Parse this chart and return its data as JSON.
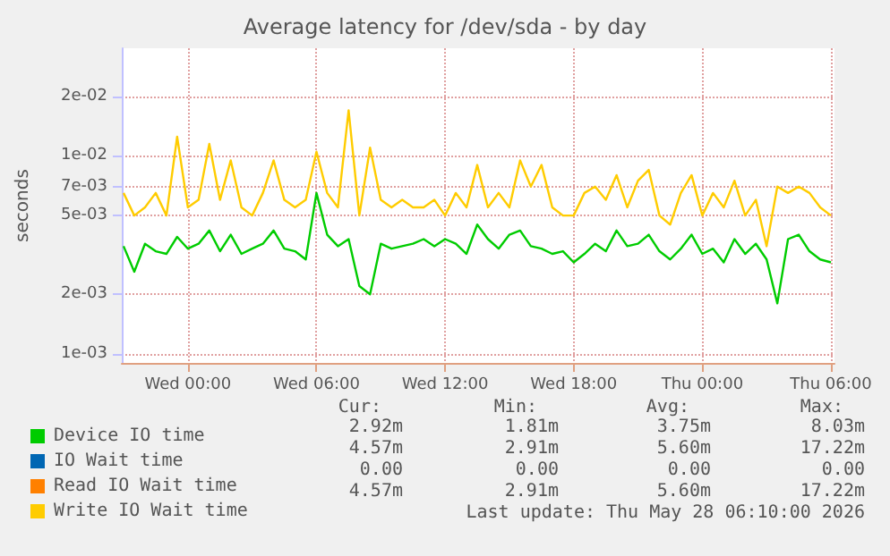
{
  "chart_data": {
    "type": "line",
    "title": "Average latency for /dev/sda - by day",
    "ylabel": "seconds",
    "x": [
      "2026-05-26T21:00",
      "2026-05-26T21:30",
      "2026-05-26T22:00",
      "2026-05-26T22:30",
      "2026-05-26T23:00",
      "2026-05-26T23:30",
      "2026-05-27T00:00",
      "2026-05-27T00:30",
      "2026-05-27T01:00",
      "2026-05-27T01:30",
      "2026-05-27T02:00",
      "2026-05-27T02:30",
      "2026-05-27T03:00",
      "2026-05-27T03:30",
      "2026-05-27T04:00",
      "2026-05-27T04:30",
      "2026-05-27T05:00",
      "2026-05-27T05:30",
      "2026-05-27T06:00",
      "2026-05-27T06:30",
      "2026-05-27T07:00",
      "2026-05-27T07:30",
      "2026-05-27T08:00",
      "2026-05-27T08:30",
      "2026-05-27T09:00",
      "2026-05-27T09:30",
      "2026-05-27T10:00",
      "2026-05-27T10:30",
      "2026-05-27T11:00",
      "2026-05-27T11:30",
      "2026-05-27T12:00",
      "2026-05-27T12:30",
      "2026-05-27T13:00",
      "2026-05-27T13:30",
      "2026-05-27T14:00",
      "2026-05-27T14:30",
      "2026-05-27T15:00",
      "2026-05-27T15:30",
      "2026-05-27T16:00",
      "2026-05-27T16:30",
      "2026-05-27T17:00",
      "2026-05-27T17:30",
      "2026-05-27T18:00",
      "2026-05-27T18:30",
      "2026-05-27T19:00",
      "2026-05-27T19:30",
      "2026-05-27T20:00",
      "2026-05-27T20:30",
      "2026-05-27T21:00",
      "2026-05-27T21:30",
      "2026-05-27T22:00",
      "2026-05-27T22:30",
      "2026-05-27T23:00",
      "2026-05-27T23:30",
      "2026-05-28T00:00",
      "2026-05-28T00:30",
      "2026-05-28T01:00",
      "2026-05-28T01:30",
      "2026-05-28T02:00",
      "2026-05-28T02:30",
      "2026-05-28T03:00",
      "2026-05-28T03:30",
      "2026-05-28T04:00",
      "2026-05-28T04:30",
      "2026-05-28T05:00",
      "2026-05-28T05:30",
      "2026-05-28T06:00"
    ],
    "series": [
      {
        "name": "Device IO time",
        "color": "#00cc00",
        "values": [
          0.0035,
          0.0026,
          0.0036,
          0.0033,
          0.0032,
          0.0039,
          0.0034,
          0.0036,
          0.0042,
          0.0033,
          0.004,
          0.0032,
          0.0034,
          0.0036,
          0.0042,
          0.0034,
          0.0033,
          0.003,
          0.0065,
          0.004,
          0.0035,
          0.0038,
          0.0022,
          0.002,
          0.0036,
          0.0034,
          0.0035,
          0.0036,
          0.0038,
          0.0035,
          0.0038,
          0.0036,
          0.0032,
          0.0045,
          0.0038,
          0.0034,
          0.004,
          0.0042,
          0.0035,
          0.0034,
          0.0032,
          0.0033,
          0.0029,
          0.0032,
          0.0036,
          0.0033,
          0.0042,
          0.0035,
          0.0036,
          0.004,
          0.0033,
          0.003,
          0.0034,
          0.004,
          0.0032,
          0.0034,
          0.0029,
          0.0038,
          0.0032,
          0.0036,
          0.003,
          0.0018,
          0.0038,
          0.004,
          0.0033,
          0.003,
          0.0029
        ]
      },
      {
        "name": "IO Wait time",
        "color": "#0066b3",
        "values": [
          null,
          null,
          null,
          null,
          null,
          null,
          null,
          null,
          null,
          null,
          null,
          null,
          null,
          null,
          null,
          null,
          null,
          null,
          null,
          null,
          null,
          null,
          null,
          null,
          null,
          null,
          null,
          null,
          null,
          null,
          null,
          null,
          null,
          null,
          null,
          null,
          null,
          null,
          null,
          null,
          null,
          null,
          null,
          null,
          null,
          null,
          null,
          null,
          null,
          null,
          null,
          null,
          null,
          null,
          null,
          null,
          null,
          null,
          null,
          null,
          null,
          null,
          null,
          null,
          null,
          null,
          null
        ]
      },
      {
        "name": "Read IO Wait time",
        "color": "#ff8000",
        "values": [
          null,
          null,
          null,
          null,
          null,
          null,
          null,
          null,
          null,
          null,
          null,
          null,
          null,
          null,
          null,
          null,
          null,
          null,
          null,
          null,
          null,
          null,
          null,
          null,
          null,
          null,
          null,
          null,
          null,
          null,
          null,
          null,
          null,
          null,
          null,
          null,
          null,
          null,
          null,
          null,
          null,
          null,
          null,
          null,
          null,
          null,
          null,
          null,
          null,
          null,
          null,
          null,
          null,
          null,
          null,
          null,
          null,
          null,
          null,
          null,
          null,
          null,
          null,
          null,
          null,
          null,
          null
        ]
      },
      {
        "name": "Write IO Wait time",
        "color": "#ffcc00",
        "values": [
          0.0065,
          0.005,
          0.0055,
          0.0065,
          0.005,
          0.0125,
          0.0055,
          0.006,
          0.0115,
          0.006,
          0.0095,
          0.0055,
          0.005,
          0.0065,
          0.0095,
          0.006,
          0.0055,
          0.006,
          0.0105,
          0.0065,
          0.0055,
          0.017,
          0.005,
          0.011,
          0.006,
          0.0055,
          0.006,
          0.0055,
          0.0055,
          0.006,
          0.005,
          0.0065,
          0.0055,
          0.009,
          0.0055,
          0.0065,
          0.0055,
          0.0095,
          0.007,
          0.009,
          0.0055,
          0.005,
          0.005,
          0.0065,
          0.007,
          0.006,
          0.008,
          0.0055,
          0.0075,
          0.0085,
          0.005,
          0.0045,
          0.0065,
          0.008,
          0.005,
          0.0065,
          0.0055,
          0.0075,
          0.005,
          0.006,
          0.0035,
          0.007,
          0.0065,
          0.007,
          0.0065,
          0.0055,
          0.005
        ]
      }
    ],
    "log": true,
    "xlim": [
      "2026-05-26T20:55",
      "2026-05-28T06:10"
    ],
    "xticks": [
      {
        "value": "2026-05-27T00:00",
        "label": "Wed 00:00"
      },
      {
        "value": "2026-05-27T06:00",
        "label": "Wed 06:00"
      },
      {
        "value": "2026-05-27T12:00",
        "label": "Wed 12:00"
      },
      {
        "value": "2026-05-27T18:00",
        "label": "Wed 18:00"
      },
      {
        "value": "2026-05-28T00:00",
        "label": "Thu 00:00"
      },
      {
        "value": "2026-05-28T06:00",
        "label": "Thu 06:00"
      }
    ],
    "ylim": [
      0.0009,
      0.035
    ],
    "yticks": [
      {
        "value": 0.001,
        "label": "1e-03"
      },
      {
        "value": 0.002,
        "label": "2e-03"
      },
      {
        "value": 0.005,
        "label": "5e-03"
      },
      {
        "value": 0.007,
        "label": "7e-03"
      },
      {
        "value": 0.01,
        "label": "1e-02"
      },
      {
        "value": 0.02,
        "label": "2e-02"
      }
    ],
    "grid": true,
    "legend": "bottom",
    "annotations": [
      "Cur:",
      "Min:",
      "Avg:",
      "Max:",
      "2.92m",
      "1.81m",
      "3.75m",
      "8.03m",
      "4.57m",
      "2.91m",
      "5.60m",
      "17.22m",
      "0.00",
      "0.00",
      "0.00",
      "0.00",
      "4.57m",
      "2.91m",
      "5.60m",
      "17.22m",
      "Last update: Thu May 28 06:10:00 2026"
    ]
  }
}
